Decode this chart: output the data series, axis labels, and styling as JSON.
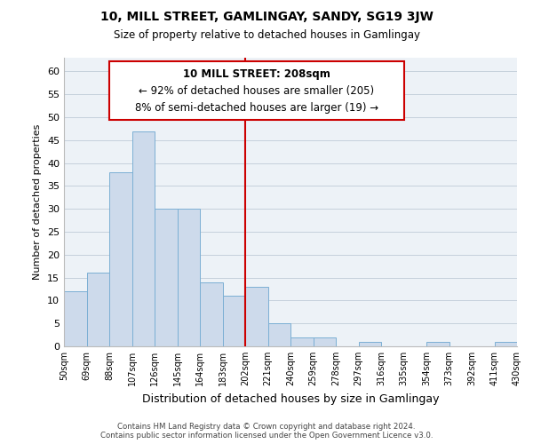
{
  "title": "10, MILL STREET, GAMLINGAY, SANDY, SG19 3JW",
  "subtitle": "Size of property relative to detached houses in Gamlingay",
  "xlabel": "Distribution of detached houses by size in Gamlingay",
  "ylabel": "Number of detached properties",
  "bar_color": "#cddaeb",
  "bar_edge_color": "#7bafd4",
  "reference_line_x": 202,
  "reference_line_color": "#cc0000",
  "bin_edges": [
    50,
    69,
    88,
    107,
    126,
    145,
    164,
    183,
    202,
    221,
    240,
    259,
    278,
    297,
    316,
    335,
    354,
    373,
    392,
    411,
    430
  ],
  "bin_labels": [
    "50sqm",
    "69sqm",
    "88sqm",
    "107sqm",
    "126sqm",
    "145sqm",
    "164sqm",
    "183sqm",
    "202sqm",
    "221sqm",
    "240sqm",
    "259sqm",
    "278sqm",
    "297sqm",
    "316sqm",
    "335sqm",
    "354sqm",
    "373sqm",
    "392sqm",
    "411sqm",
    "430sqm"
  ],
  "counts": [
    12,
    16,
    38,
    47,
    30,
    30,
    14,
    11,
    13,
    5,
    2,
    2,
    0,
    1,
    0,
    0,
    1,
    0,
    0,
    1
  ],
  "ylim": [
    0,
    63
  ],
  "yticks": [
    0,
    5,
    10,
    15,
    20,
    25,
    30,
    35,
    40,
    45,
    50,
    55,
    60
  ],
  "annotation_title": "10 MILL STREET: 208sqm",
  "annotation_line1": "← 92% of detached houses are smaller (205)",
  "annotation_line2": "8% of semi-detached houses are larger (19) →",
  "annotation_box_color": "white",
  "annotation_box_edge": "#cc0000",
  "footer_line1": "Contains HM Land Registry data © Crown copyright and database right 2024.",
  "footer_line2": "Contains public sector information licensed under the Open Government Licence v3.0.",
  "background_color": "#edf2f7",
  "plot_background": "white",
  "grid_color": "#c5d0dc"
}
